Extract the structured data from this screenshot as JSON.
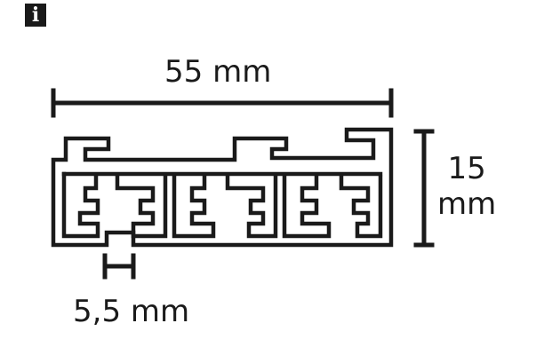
{
  "badge": "i",
  "dimensions": {
    "width": "55 mm",
    "height_value": "15",
    "height_unit": "mm",
    "slot": "5,5 mm"
  },
  "colors": {
    "ink": "#1a1a1a",
    "background": "#ffffff"
  }
}
